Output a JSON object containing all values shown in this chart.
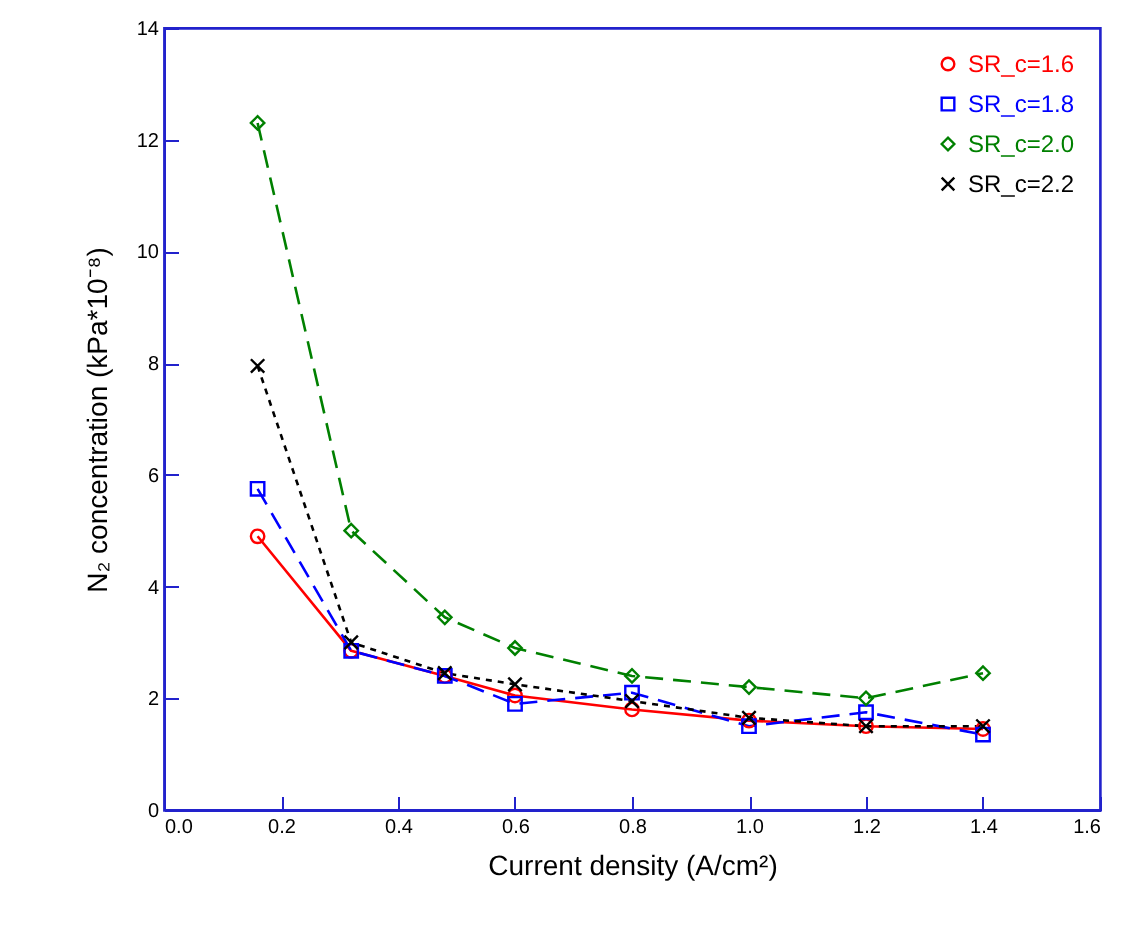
{
  "chart_data": {
    "type": "line",
    "xlabel": "Current density (A/cm²)",
    "ylabel": "N₂ concentration (kPa*10⁻⁸)",
    "x": [
      0.16,
      0.32,
      0.48,
      0.6,
      0.8,
      1.0,
      1.2,
      1.4
    ],
    "series": [
      {
        "name": "SR_c=1.6",
        "color": "#ff0000",
        "marker": "circle",
        "line_style": "solid",
        "values": [
          4.9,
          2.85,
          2.4,
          2.05,
          1.8,
          1.6,
          1.5,
          1.45
        ]
      },
      {
        "name": "SR_c=1.8",
        "color": "#0000ff",
        "marker": "square",
        "line_style": "dashed",
        "values": [
          5.75,
          2.85,
          2.4,
          1.9,
          2.1,
          1.5,
          1.75,
          1.35
        ]
      },
      {
        "name": "SR_c=2.0",
        "color": "#008000",
        "marker": "diamond",
        "line_style": "dashed",
        "values": [
          12.3,
          5.0,
          3.45,
          2.9,
          2.4,
          2.2,
          2.0,
          2.45
        ]
      },
      {
        "name": "SR_c=2.2",
        "color": "#000000",
        "marker": "cross",
        "line_style": "dotted",
        "values": [
          7.95,
          3.0,
          2.45,
          2.25,
          1.95,
          1.65,
          1.5,
          1.5
        ]
      }
    ],
    "xlim": [
      0,
      1.6
    ],
    "xticks": [
      {
        "value": 0,
        "label": "0.0"
      },
      0.2,
      0.4,
      0.6,
      0.8,
      {
        "value": 1,
        "label": "1.0"
      },
      1.2,
      1.4,
      1.6
    ],
    "ylim": [
      0,
      14
    ],
    "yticks": [
      0,
      2,
      4,
      6,
      8,
      10,
      12,
      14
    ],
    "grid": false,
    "legend": "top right"
  }
}
